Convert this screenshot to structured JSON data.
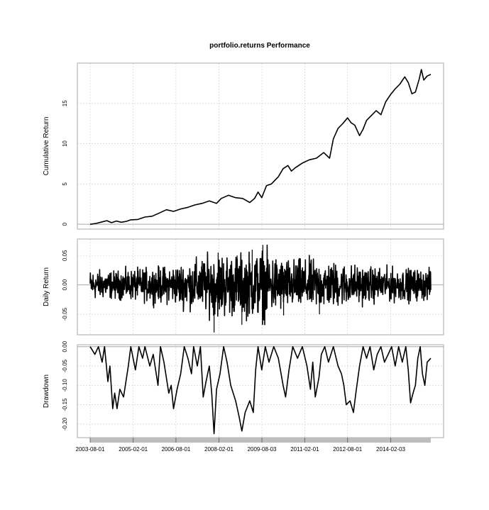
{
  "chart_data": {
    "type": "line",
    "title": "portfolio.returns Performance",
    "x_start": "2003-08-01",
    "x_end": "2015-06-30",
    "x_ticks": [
      "2003-08-01",
      "2005-02-01",
      "2006-08-01",
      "2008-02-01",
      "2009-08-03",
      "2011-02-01",
      "2012-08-01",
      "2014-02-03"
    ],
    "grid": true,
    "panels": [
      {
        "name": "cumulative",
        "ylabel": "Cumulative Return",
        "ylim": [
          -0.6,
          20.0
        ],
        "yticks": [
          0,
          5,
          10,
          15
        ],
        "ytick_labels": [
          "0",
          "5",
          "10",
          "15"
        ],
        "zero_line": 0,
        "series": [
          {
            "values": [
              [
                "2003-08-01",
                0.0
              ],
              [
                "2003-10-15",
                0.1
              ],
              [
                "2004-01-01",
                0.3
              ],
              [
                "2004-03-01",
                0.45
              ],
              [
                "2004-05-01",
                0.2
              ],
              [
                "2004-07-01",
                0.4
              ],
              [
                "2004-09-01",
                0.25
              ],
              [
                "2004-11-01",
                0.35
              ],
              [
                "2005-01-01",
                0.55
              ],
              [
                "2005-04-01",
                0.6
              ],
              [
                "2005-07-01",
                0.9
              ],
              [
                "2005-10-01",
                1.0
              ],
              [
                "2006-01-01",
                1.4
              ],
              [
                "2006-04-01",
                1.8
              ],
              [
                "2006-07-01",
                1.6
              ],
              [
                "2006-10-01",
                1.9
              ],
              [
                "2007-01-01",
                2.1
              ],
              [
                "2007-04-01",
                2.4
              ],
              [
                "2007-07-01",
                2.6
              ],
              [
                "2007-10-01",
                2.9
              ],
              [
                "2008-01-01",
                2.6
              ],
              [
                "2008-03-01",
                3.2
              ],
              [
                "2008-06-01",
                3.6
              ],
              [
                "2008-09-01",
                3.3
              ],
              [
                "2008-12-01",
                3.2
              ],
              [
                "2009-03-01",
                2.7
              ],
              [
                "2009-05-01",
                3.2
              ],
              [
                "2009-06-15",
                4.0
              ],
              [
                "2009-08-01",
                3.3
              ],
              [
                "2009-10-01",
                4.8
              ],
              [
                "2009-12-01",
                5.0
              ],
              [
                "2010-03-01",
                5.9
              ],
              [
                "2010-05-01",
                6.9
              ],
              [
                "2010-07-01",
                7.3
              ],
              [
                "2010-08-15",
                6.6
              ],
              [
                "2010-10-01",
                7.0
              ],
              [
                "2011-01-01",
                7.6
              ],
              [
                "2011-04-01",
                8.0
              ],
              [
                "2011-07-01",
                8.2
              ],
              [
                "2011-10-01",
                8.9
              ],
              [
                "2011-12-15",
                8.2
              ],
              [
                "2012-02-01",
                10.6
              ],
              [
                "2012-04-01",
                11.9
              ],
              [
                "2012-06-01",
                12.5
              ],
              [
                "2012-08-01",
                13.2
              ],
              [
                "2012-09-15",
                12.6
              ],
              [
                "2012-11-01",
                12.3
              ],
              [
                "2013-01-01",
                11.0
              ],
              [
                "2013-02-15",
                11.8
              ],
              [
                "2013-04-01",
                12.9
              ],
              [
                "2013-06-01",
                13.5
              ],
              [
                "2013-08-01",
                14.1
              ],
              [
                "2013-10-01",
                13.6
              ],
              [
                "2013-12-01",
                15.2
              ],
              [
                "2014-02-01",
                16.1
              ],
              [
                "2014-04-01",
                16.8
              ],
              [
                "2014-06-01",
                17.4
              ],
              [
                "2014-08-01",
                18.3
              ],
              [
                "2014-09-15",
                17.6
              ],
              [
                "2014-11-01",
                16.2
              ],
              [
                "2014-12-15",
                16.4
              ],
              [
                "2015-02-01",
                18.0
              ],
              [
                "2015-03-01",
                19.2
              ],
              [
                "2015-04-01",
                17.9
              ],
              [
                "2015-05-15",
                18.4
              ],
              [
                "2015-06-30",
                18.6
              ]
            ]
          }
        ]
      },
      {
        "name": "daily",
        "ylabel": "Daily Return",
        "ylim": [
          -0.085,
          0.078
        ],
        "yticks": [
          -0.05,
          0.0,
          0.05
        ],
        "ytick_labels": [
          "-0.05",
          "0.00",
          "0.05"
        ],
        "zero_line": 0,
        "volatility_profile": [
          [
            "2003-08-01",
            0.012
          ],
          [
            "2004-06-01",
            0.011
          ],
          [
            "2005-06-01",
            0.013
          ],
          [
            "2006-06-01",
            0.015
          ],
          [
            "2007-06-01",
            0.021
          ],
          [
            "2008-03-01",
            0.026
          ],
          [
            "2008-10-01",
            0.024
          ],
          [
            "2009-08-01",
            0.028
          ],
          [
            "2010-06-01",
            0.02
          ],
          [
            "2011-06-01",
            0.02
          ],
          [
            "2012-06-01",
            0.017
          ],
          [
            "2013-06-01",
            0.014
          ],
          [
            "2014-06-01",
            0.013
          ],
          [
            "2015-06-30",
            0.012
          ]
        ],
        "extremes": [
          [
            "2007-12-01",
            -0.081
          ],
          [
            "2008-11-20",
            -0.068
          ],
          [
            "2008-01-22",
            0.055
          ],
          [
            "2009-08-15",
            0.068
          ],
          [
            "2009-04-01",
            0.06
          ],
          [
            "2008-09-20",
            0.05
          ],
          [
            "2010-05-07",
            -0.052
          ],
          [
            "2011-08-08",
            -0.05
          ]
        ]
      },
      {
        "name": "drawdown",
        "ylabel": "Drawdown",
        "ylim": [
          -0.235,
          0.005
        ],
        "yticks": [
          0.0,
          -0.05,
          -0.1,
          -0.15,
          -0.2
        ],
        "ytick_labels": [
          "0.00",
          "-0.05",
          "-0.10",
          "-0.15",
          "-0.20"
        ],
        "zero_line": 0,
        "series": [
          {
            "values": [
              [
                "2003-08-01",
                0
              ],
              [
                "2003-10-01",
                -0.02
              ],
              [
                "2003-11-15",
                0
              ],
              [
                "2004-01-01",
                -0.04
              ],
              [
                "2004-02-01",
                0
              ],
              [
                "2004-03-15",
                -0.09
              ],
              [
                "2004-04-10",
                -0.05
              ],
              [
                "2004-05-15",
                -0.16
              ],
              [
                "2004-06-10",
                -0.12
              ],
              [
                "2004-07-10",
                -0.16
              ],
              [
                "2004-08-15",
                -0.11
              ],
              [
                "2004-10-01",
                -0.13
              ],
              [
                "2004-12-01",
                -0.05
              ],
              [
                "2005-01-01",
                0
              ],
              [
                "2005-03-01",
                -0.06
              ],
              [
                "2005-04-15",
                0
              ],
              [
                "2005-06-01",
                -0.03
              ],
              [
                "2005-07-01",
                0
              ],
              [
                "2005-09-01",
                -0.05
              ],
              [
                "2005-10-15",
                -0.02
              ],
              [
                "2005-12-15",
                -0.1
              ],
              [
                "2006-01-15",
                0
              ],
              [
                "2006-03-01",
                -0.04
              ],
              [
                "2006-05-01",
                -0.12
              ],
              [
                "2006-06-01",
                -0.1
              ],
              [
                "2006-07-01",
                -0.16
              ],
              [
                "2006-08-15",
                -0.11
              ],
              [
                "2006-10-01",
                -0.07
              ],
              [
                "2006-11-15",
                0
              ],
              [
                "2007-01-01",
                -0.03
              ],
              [
                "2007-02-15",
                -0.07
              ],
              [
                "2007-03-15",
                0
              ],
              [
                "2007-05-01",
                -0.05
              ],
              [
                "2007-06-10",
                0
              ],
              [
                "2007-07-15",
                -0.13
              ],
              [
                "2007-08-20",
                -0.09
              ],
              [
                "2007-10-01",
                -0.05
              ],
              [
                "2007-11-01",
                -0.12
              ],
              [
                "2007-12-01",
                -0.225
              ],
              [
                "2008-01-01",
                -0.11
              ],
              [
                "2008-02-15",
                -0.07
              ],
              [
                "2008-04-01",
                0
              ],
              [
                "2008-05-15",
                -0.04
              ],
              [
                "2008-07-01",
                -0.1
              ],
              [
                "2008-09-01",
                -0.14
              ],
              [
                "2008-10-15",
                -0.18
              ],
              [
                "2008-11-20",
                -0.218
              ],
              [
                "2009-01-01",
                -0.17
              ],
              [
                "2009-03-01",
                -0.14
              ],
              [
                "2009-04-15",
                -0.17
              ],
              [
                "2009-05-15",
                -0.06
              ],
              [
                "2009-06-15",
                0
              ],
              [
                "2009-08-01",
                -0.06
              ],
              [
                "2009-09-15",
                0
              ],
              [
                "2009-11-01",
                -0.04
              ],
              [
                "2010-01-01",
                0
              ],
              [
                "2010-03-01",
                -0.03
              ],
              [
                "2010-05-01",
                -0.1
              ],
              [
                "2010-06-01",
                -0.13
              ],
              [
                "2010-07-15",
                -0.06
              ],
              [
                "2010-09-01",
                0
              ],
              [
                "2010-11-01",
                -0.03
              ],
              [
                "2011-01-01",
                0
              ],
              [
                "2011-03-01",
                -0.05
              ],
              [
                "2011-04-15",
                -0.11
              ],
              [
                "2011-05-15",
                -0.04
              ],
              [
                "2011-06-15",
                -0.13
              ],
              [
                "2011-08-01",
                -0.08
              ],
              [
                "2011-09-01",
                -0.02
              ],
              [
                "2011-10-15",
                0
              ],
              [
                "2011-12-01",
                -0.04
              ],
              [
                "2012-02-01",
                0
              ],
              [
                "2012-04-01",
                -0.05
              ],
              [
                "2012-05-15",
                -0.07
              ],
              [
                "2012-06-15",
                -0.1
              ],
              [
                "2012-07-15",
                -0.15
              ],
              [
                "2012-09-01",
                -0.14
              ],
              [
                "2012-10-15",
                -0.17
              ],
              [
                "2012-11-15",
                -0.12
              ],
              [
                "2013-01-01",
                -0.05
              ],
              [
                "2013-02-15",
                0
              ],
              [
                "2013-04-01",
                -0.03
              ],
              [
                "2013-05-15",
                0
              ],
              [
                "2013-07-01",
                -0.06
              ],
              [
                "2013-08-15",
                -0.02
              ],
              [
                "2013-10-01",
                0
              ],
              [
                "2013-11-15",
                -0.04
              ],
              [
                "2014-01-01",
                -0.02
              ],
              [
                "2014-02-15",
                0
              ],
              [
                "2014-04-01",
                -0.05
              ],
              [
                "2014-05-15",
                0
              ],
              [
                "2014-07-01",
                -0.04
              ],
              [
                "2014-08-15",
                0
              ],
              [
                "2014-09-15",
                -0.06
              ],
              [
                "2014-10-15",
                -0.145
              ],
              [
                "2014-11-15",
                -0.12
              ],
              [
                "2014-12-15",
                -0.1
              ],
              [
                "2015-01-15",
                -0.03
              ],
              [
                "2015-02-15",
                0
              ],
              [
                "2015-03-15",
                -0.07
              ],
              [
                "2015-04-15",
                -0.1
              ],
              [
                "2015-05-15",
                -0.04
              ],
              [
                "2015-06-30",
                -0.03
              ]
            ]
          }
        ]
      }
    ]
  }
}
